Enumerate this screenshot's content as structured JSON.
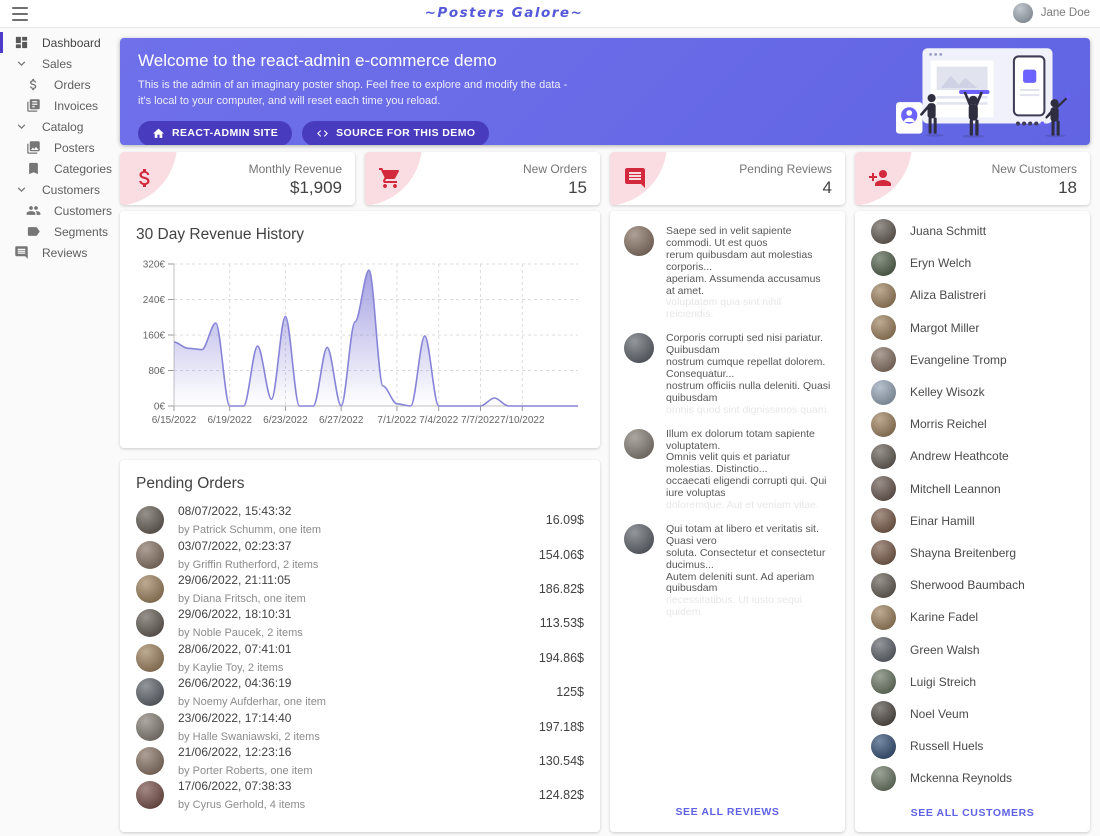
{
  "topbar": {
    "title": "~Posters Galore~",
    "user": "Jane Doe"
  },
  "sidebar": {
    "items": [
      {
        "label": "Dashboard",
        "icon": "dashboard-icon",
        "type": "item",
        "active": true
      },
      {
        "label": "Sales",
        "icon": "chevron-down-icon",
        "type": "section"
      },
      {
        "label": "Orders",
        "icon": "dollar-icon",
        "type": "subitem"
      },
      {
        "label": "Invoices",
        "icon": "invoices-icon",
        "type": "subitem"
      },
      {
        "label": "Catalog",
        "icon": "chevron-down-icon",
        "type": "section"
      },
      {
        "label": "Posters",
        "icon": "posters-icon",
        "type": "subitem"
      },
      {
        "label": "Categories",
        "icon": "bookmark-icon",
        "type": "subitem"
      },
      {
        "label": "Customers",
        "icon": "chevron-down-icon",
        "type": "section"
      },
      {
        "label": "Customers",
        "icon": "people-icon",
        "type": "subitem"
      },
      {
        "label": "Segments",
        "icon": "label-icon",
        "type": "subitem"
      },
      {
        "label": "Reviews",
        "icon": "comment-icon",
        "type": "item"
      }
    ]
  },
  "welcome": {
    "title": "Welcome to the react-admin e-commerce demo",
    "line1": "This is the admin of an imaginary poster shop. Feel free to explore and modify the data -",
    "line2": "it's local to your computer, and will reset each time you reload.",
    "buttons": [
      {
        "label": "REACT-ADMIN SITE",
        "icon": "home-icon"
      },
      {
        "label": "SOURCE FOR THIS DEMO",
        "icon": "code-icon"
      }
    ]
  },
  "kpis": [
    {
      "label": "Monthly Revenue",
      "value": "$1,909",
      "icon": "dollar-icon"
    },
    {
      "label": "New Orders",
      "value": "15",
      "icon": "cart-icon"
    },
    {
      "label": "Pending Reviews",
      "value": "4",
      "icon": "comment-icon"
    },
    {
      "label": "New Customers",
      "value": "18",
      "icon": "person-add-icon"
    }
  ],
  "chart_data": {
    "type": "area",
    "title": "30 Day Revenue History",
    "x": [
      "6/15/2022",
      "6/16/2022",
      "6/17/2022",
      "6/18/2022",
      "6/19/2022",
      "6/20/2022",
      "6/21/2022",
      "6/22/2022",
      "6/23/2022",
      "6/24/2022",
      "6/25/2022",
      "6/26/2022",
      "6/27/2022",
      "6/28/2022",
      "6/29/2022",
      "6/30/2022",
      "7/1/2022",
      "7/2/2022",
      "7/3/2022",
      "7/4/2022",
      "7/5/2022",
      "7/6/2022",
      "7/7/2022",
      "7/8/2022",
      "7/9/2022",
      "7/10/2022",
      "7/11/2022",
      "7/12/2022",
      "7/13/2022",
      "7/14/2022"
    ],
    "values": [
      144,
      130,
      127,
      187,
      0,
      0,
      135,
      15,
      202,
      0,
      0,
      132,
      0,
      190,
      306,
      45,
      5,
      0,
      158,
      0,
      0,
      0,
      0,
      18,
      0,
      0,
      0,
      0,
      0,
      0
    ],
    "x_ticks": [
      "6/15/2022",
      "6/19/2022",
      "6/23/2022",
      "6/27/2022",
      "7/1/2022",
      "7/4/2022",
      "7/7/2022",
      "7/10/2022"
    ],
    "x_tick_days": [
      0,
      4,
      8,
      12,
      16,
      19,
      22,
      25
    ],
    "y_ticks": [
      "0€",
      "80€",
      "160€",
      "240€",
      "320€"
    ],
    "y_tick_values": [
      0,
      80,
      160,
      240,
      320
    ],
    "ylim": [
      0,
      320
    ],
    "xlabel": "",
    "ylabel": "",
    "grid": "dashed",
    "legend": "none",
    "line_color": "#8884d8",
    "fill_color": "#8884d8"
  },
  "pending_orders": {
    "title": "Pending Orders",
    "orders": [
      {
        "datetime": "08/07/2022, 15:43:32",
        "by": "by Patrick Schumm, one item",
        "amount": "16.09$"
      },
      {
        "datetime": "03/07/2022, 02:23:37",
        "by": "by Griffin Rutherford, 2 items",
        "amount": "154.06$"
      },
      {
        "datetime": "29/06/2022, 21:11:05",
        "by": "by Diana Fritsch, one item",
        "amount": "186.82$"
      },
      {
        "datetime": "29/06/2022, 18:10:31",
        "by": "by Noble Paucek, 2 items",
        "amount": "113.53$"
      },
      {
        "datetime": "28/06/2022, 07:41:01",
        "by": "by Kaylie Toy, 2 items",
        "amount": "194.86$"
      },
      {
        "datetime": "26/06/2022, 04:36:19",
        "by": "by Noemy Aufderhar, one item",
        "amount": "125$"
      },
      {
        "datetime": "23/06/2022, 17:14:40",
        "by": "by Halle Swaniawski, 2 items",
        "amount": "197.18$"
      },
      {
        "datetime": "21/06/2022, 12:23:16",
        "by": "by Porter Roberts, one item",
        "amount": "130.54$"
      },
      {
        "datetime": "17/06/2022, 07:38:33",
        "by": "by Cyrus Gerhold, 4 items",
        "amount": "124.82$"
      }
    ]
  },
  "reviews": {
    "items": [
      {
        "lines": [
          "Saepe sed in velit sapiente commodi. Ut est quos",
          "rerum quibusdam aut molestias corporis...",
          "aperiam. Assumenda accusamus at amet."
        ],
        "faded": "voluptatem quia sint nihil reiciendis."
      },
      {
        "lines": [
          "Corporis corrupti sed nisi pariatur. Quibusdam",
          "nostrum cumque repellat dolorem. Consequatur...",
          "nostrum officiis nulla deleniti. Quasi quibusdam"
        ],
        "faded": "omnis quod sint dignissimos quam."
      },
      {
        "lines": [
          "Illum ex dolorum totam sapiente voluptatem.",
          "Omnis velit quis et pariatur molestias. Distinctio...",
          "occaecati eligendi corrupti qui. Qui iure voluptas"
        ],
        "faded": "doloremque. Aut et veniam vitae."
      },
      {
        "lines": [
          "Qui totam at libero et veritatis sit. Quasi vero",
          "soluta. Consectetur et consectetur ducimus...",
          "Autem deleniti sunt. Ad aperiam quibusdam"
        ],
        "faded": "necessitatibus. Ut iusto sequi quidem."
      }
    ],
    "see_all": "SEE ALL REVIEWS"
  },
  "customers": {
    "names": [
      "Juana Schmitt",
      "Eryn Welch",
      "Aliza Balistreri",
      "Margot Miller",
      "Evangeline Tromp",
      "Kelley Wisozk",
      "Morris Reichel",
      "Andrew Heathcote",
      "Mitchell Leannon",
      "Einar Hamill",
      "Shayna Breitenberg",
      "Sherwood Baumbach",
      "Karine Fadel",
      "Green Walsh",
      "Luigi Streich",
      "Noel Veum",
      "Russell Huels",
      "Mckenna Reynolds"
    ],
    "see_all": "SEE ALL CUSTOMERS"
  },
  "colors": {
    "banner_bg": "#6467e6",
    "banner_button_bg": "#493bbe",
    "brand_text": "#5558d9",
    "active_nav": "#4f3cc9",
    "kpi_icon_red": "#d2293c",
    "kpi_blob_pink": "#fadde2",
    "chart_purple": "#8884d8",
    "link_purple": "#5f62e6"
  }
}
